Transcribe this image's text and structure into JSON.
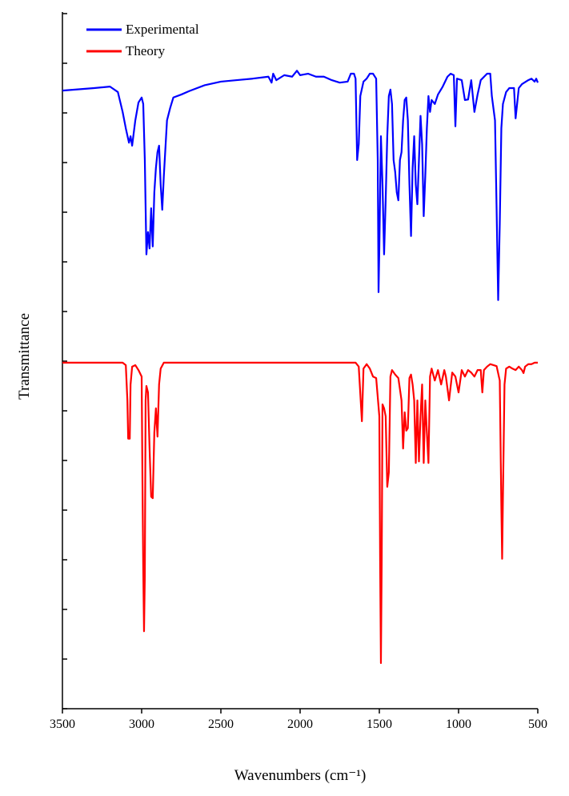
{
  "chart_data": {
    "type": "line",
    "xlabel": "Wavenumbers (cm⁻¹)",
    "ylabel": "Transmittance",
    "xlim": [
      3500,
      500
    ],
    "xticks": [
      3500,
      3000,
      2500,
      2000,
      1500,
      1000,
      500
    ],
    "ylim": [
      0,
      14
    ],
    "yticks": [
      0,
      1,
      2,
      3,
      4,
      5,
      6,
      7,
      8,
      9,
      10,
      11,
      12,
      13,
      14
    ],
    "legend": "upper left",
    "series": [
      {
        "name": "Experimental",
        "color": "#0000ff",
        "x": [
          3500,
          3300,
          3200,
          3150,
          3120,
          3100,
          3080,
          3070,
          3060,
          3040,
          3020,
          3000,
          2990,
          2980,
          2970,
          2960,
          2950,
          2940,
          2930,
          2920,
          2910,
          2900,
          2890,
          2880,
          2870,
          2860,
          2840,
          2820,
          2800,
          2750,
          2700,
          2600,
          2500,
          2400,
          2300,
          2200,
          2180,
          2170,
          2150,
          2100,
          2050,
          2020,
          2000,
          1950,
          1900,
          1850,
          1800,
          1750,
          1700,
          1680,
          1660,
          1650,
          1640,
          1630,
          1620,
          1600,
          1580,
          1560,
          1540,
          1520,
          1510,
          1505,
          1500,
          1490,
          1480,
          1470,
          1460,
          1450,
          1440,
          1430,
          1420,
          1410,
          1400,
          1390,
          1380,
          1370,
          1360,
          1350,
          1340,
          1330,
          1320,
          1310,
          1300,
          1290,
          1280,
          1270,
          1260,
          1250,
          1240,
          1230,
          1220,
          1210,
          1200,
          1190,
          1180,
          1170,
          1150,
          1130,
          1100,
          1070,
          1050,
          1030,
          1020,
          1010,
          980,
          960,
          940,
          920,
          900,
          880,
          860,
          820,
          800,
          790,
          770,
          760,
          750,
          740,
          730,
          720,
          700,
          680,
          650,
          640,
          620,
          600,
          560,
          540,
          520,
          510,
          500
        ],
        "values": [
          12.45,
          12.5,
          12.53,
          12.42,
          12.02,
          11.69,
          11.4,
          11.53,
          11.34,
          11.85,
          12.21,
          12.31,
          12.18,
          11.05,
          9.15,
          9.6,
          9.27,
          10.08,
          9.31,
          10.4,
          10.89,
          11.21,
          11.34,
          10.56,
          10.05,
          10.73,
          11.85,
          12.1,
          12.31,
          12.37,
          12.44,
          12.56,
          12.63,
          12.66,
          12.69,
          12.73,
          12.61,
          12.79,
          12.66,
          12.76,
          12.73,
          12.85,
          12.76,
          12.79,
          12.73,
          12.73,
          12.66,
          12.61,
          12.63,
          12.79,
          12.79,
          12.69,
          11.05,
          11.37,
          12.34,
          12.63,
          12.69,
          12.79,
          12.79,
          12.69,
          11.05,
          8.39,
          9.27,
          11.53,
          10.56,
          9.15,
          10.24,
          11.53,
          12.34,
          12.47,
          12.18,
          11.05,
          10.81,
          10.4,
          10.24,
          11.05,
          11.21,
          11.85,
          12.26,
          12.31,
          11.85,
          10.56,
          9.52,
          10.89,
          11.53,
          10.56,
          10.16,
          11.05,
          11.94,
          11.37,
          9.92,
          10.73,
          11.69,
          12.34,
          12.02,
          12.26,
          12.18,
          12.37,
          12.53,
          12.73,
          12.79,
          12.76,
          11.73,
          12.69,
          12.66,
          12.26,
          12.27,
          12.66,
          12.02,
          12.37,
          12.66,
          12.79,
          12.79,
          12.34,
          11.85,
          10.08,
          8.23,
          9.76,
          11.69,
          12.18,
          12.42,
          12.5,
          12.5,
          11.89,
          12.5,
          12.58,
          12.66,
          12.69,
          12.63,
          12.69,
          12.61
        ]
      },
      {
        "name": "Theory",
        "color": "#ff0000",
        "x": [
          3500,
          3120,
          3100,
          3090,
          3085,
          3075,
          3070,
          3060,
          3040,
          3020,
          3000,
          2995,
          2990,
          2985,
          2980,
          2975,
          2970,
          2960,
          2950,
          2940,
          2930,
          2920,
          2910,
          2900,
          2890,
          2880,
          2860,
          1650,
          1630,
          1610,
          1600,
          1580,
          1560,
          1540,
          1520,
          1500,
          1495,
          1490,
          1485,
          1480,
          1470,
          1460,
          1450,
          1440,
          1430,
          1420,
          1400,
          1380,
          1360,
          1350,
          1340,
          1330,
          1320,
          1310,
          1300,
          1290,
          1280,
          1270,
          1260,
          1250,
          1240,
          1230,
          1220,
          1210,
          1200,
          1190,
          1180,
          1170,
          1150,
          1130,
          1110,
          1090,
          1080,
          1060,
          1040,
          1020,
          1000,
          980,
          960,
          940,
          920,
          900,
          880,
          860,
          850,
          840,
          820,
          800,
          760,
          740,
          730,
          725,
          720,
          710,
          700,
          680,
          660,
          640,
          620,
          600,
          590,
          580,
          560,
          540,
          520,
          500
        ],
        "values": [
          6.97,
          6.97,
          6.92,
          6.21,
          5.44,
          5.44,
          6.53,
          6.89,
          6.92,
          6.82,
          6.69,
          4.6,
          2.85,
          1.56,
          2.66,
          6.21,
          6.5,
          6.37,
          5.24,
          4.27,
          4.24,
          5.56,
          6.05,
          5.48,
          6.53,
          6.85,
          6.97,
          6.97,
          6.89,
          5.79,
          6.85,
          6.94,
          6.85,
          6.69,
          6.66,
          5.89,
          2.98,
          0.92,
          2.98,
          6.13,
          6.05,
          5.89,
          4.47,
          4.76,
          6.69,
          6.82,
          6.73,
          6.66,
          6.21,
          5.24,
          5.97,
          5.6,
          5.65,
          6.66,
          6.73,
          6.53,
          6.21,
          4.95,
          6.21,
          4.98,
          5.89,
          6.53,
          4.95,
          6.21,
          5.56,
          4.95,
          6.69,
          6.85,
          6.61,
          6.82,
          6.53,
          6.82,
          6.69,
          6.21,
          6.77,
          6.69,
          6.37,
          6.82,
          6.69,
          6.82,
          6.77,
          6.69,
          6.82,
          6.82,
          6.37,
          6.82,
          6.89,
          6.94,
          6.9,
          6.61,
          4.08,
          3.02,
          4.27,
          6.53,
          6.85,
          6.89,
          6.85,
          6.82,
          6.89,
          6.82,
          6.76,
          6.89,
          6.94,
          6.94,
          6.97,
          6.97
        ]
      }
    ]
  }
}
